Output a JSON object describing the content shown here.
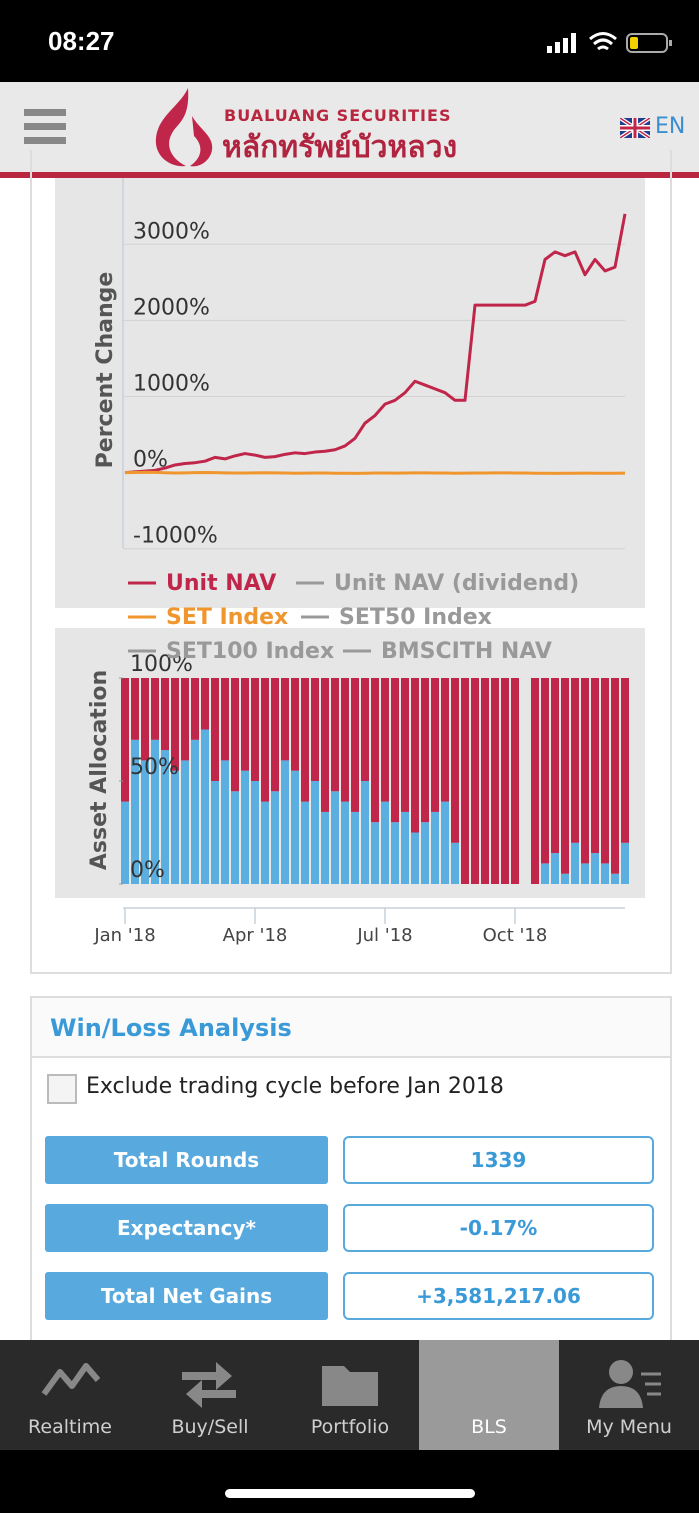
{
  "status_bar": {
    "time": "08:27"
  },
  "header": {
    "brand_en": "BUALUANG SECURITIES",
    "brand_th": "หลักทรัพย์บัวหลวง",
    "language": "EN"
  },
  "chart_data": [
    {
      "type": "line",
      "ylabel": "Percent Change",
      "x": [
        0,
        1,
        2,
        3,
        4,
        5,
        6,
        7,
        8,
        9,
        10,
        11,
        12,
        13,
        14,
        15,
        16,
        17,
        18,
        19,
        20,
        21,
        22,
        23,
        24,
        25,
        26,
        27,
        28,
        29,
        30,
        31,
        32,
        33,
        34,
        35,
        36,
        37,
        38,
        39,
        40,
        41,
        42,
        43,
        44,
        45,
        46,
        47,
        48,
        49,
        50
      ],
      "xlim": [
        0,
        50
      ],
      "ylim": [
        -1000,
        3800
      ],
      "yticks": [
        {
          "value": -1000,
          "label": "-1000%"
        },
        {
          "value": 0,
          "label": "0%"
        },
        {
          "value": 1000,
          "label": "1000%"
        },
        {
          "value": 2000,
          "label": "2000%"
        },
        {
          "value": 3000,
          "label": "3000%"
        }
      ],
      "grid": true,
      "series": [
        {
          "name": "Unit NAV",
          "color": "#c0254a",
          "visible": true,
          "values": [
            0,
            10,
            20,
            30,
            60,
            100,
            120,
            130,
            150,
            200,
            180,
            220,
            250,
            230,
            200,
            210,
            240,
            260,
            250,
            270,
            280,
            300,
            350,
            450,
            650,
            750,
            900,
            950,
            1050,
            1200,
            1150,
            1100,
            1050,
            950,
            950,
            2200,
            2200,
            2200,
            2200,
            2200,
            2200,
            2250,
            2800,
            2900,
            2850,
            2900,
            2600,
            2800,
            2650,
            2700,
            3400
          ]
        },
        {
          "name": "Unit NAV (dividend)",
          "color": "#999999",
          "visible": false
        },
        {
          "name": "SET Index",
          "color": "#f0962e",
          "visible": true,
          "values": [
            0,
            2,
            5,
            3,
            -2,
            -5,
            -3,
            0,
            2,
            0,
            -4,
            -6,
            -5,
            -3,
            -2,
            -4,
            -6,
            -8,
            -7,
            -5,
            -6,
            -8,
            -9,
            -10,
            -8,
            -6,
            -5,
            -7,
            -6,
            -4,
            -3,
            -5,
            -6,
            -8,
            -7,
            -6,
            -5,
            -4,
            -3,
            -5,
            -6,
            -8,
            -9,
            -10,
            -9,
            -8,
            -7,
            -8,
            -9,
            -8,
            -7
          ]
        },
        {
          "name": "SET50 Index",
          "color": "#999999",
          "visible": false
        },
        {
          "name": "SET100 Index",
          "color": "#999999",
          "visible": false
        },
        {
          "name": "BMSCITH NAV",
          "color": "#999999",
          "visible": false
        }
      ]
    },
    {
      "type": "stacked_bar",
      "ylabel": "Asset Allocation",
      "x": [
        0,
        1,
        2,
        3,
        4,
        5,
        6,
        7,
        8,
        9,
        10,
        11,
        12,
        13,
        14,
        15,
        16,
        17,
        18,
        19,
        20,
        21,
        22,
        23,
        24,
        25,
        26,
        27,
        28,
        29,
        30,
        31,
        32,
        33,
        34,
        35,
        36,
        37,
        38,
        39,
        40,
        41,
        42,
        43,
        44,
        45,
        46,
        47,
        48,
        49,
        50
      ],
      "xlim": [
        0,
        50
      ],
      "ylim": [
        0,
        100
      ],
      "xticks": [
        {
          "value": 0,
          "label": "Jan '18"
        },
        {
          "value": 13,
          "label": "Apr '18"
        },
        {
          "value": 26,
          "label": "Jul '18"
        },
        {
          "value": 39,
          "label": "Oct '18"
        }
      ],
      "yticks": [
        {
          "value": 0,
          "label": "0%"
        },
        {
          "value": 50,
          "label": "50%"
        },
        {
          "value": 100,
          "label": "100%"
        }
      ],
      "series": [
        {
          "color": "#5aafe0",
          "values": [
            40,
            70,
            60,
            70,
            65,
            55,
            60,
            70,
            75,
            50,
            60,
            45,
            55,
            50,
            40,
            45,
            60,
            55,
            40,
            50,
            35,
            45,
            40,
            35,
            50,
            30,
            40,
            30,
            35,
            25,
            30,
            35,
            40,
            20,
            0,
            0,
            0,
            0,
            0,
            0,
            null,
            0,
            10,
            15,
            5,
            20,
            10,
            15,
            10,
            5,
            20
          ]
        },
        {
          "color": "#c0254a",
          "values": [
            60,
            30,
            40,
            30,
            35,
            45,
            40,
            30,
            25,
            50,
            40,
            55,
            45,
            50,
            60,
            55,
            40,
            45,
            60,
            50,
            65,
            55,
            60,
            65,
            50,
            70,
            60,
            70,
            65,
            75,
            70,
            65,
            60,
            80,
            100,
            100,
            100,
            100,
            100,
            100,
            null,
            100,
            90,
            85,
            95,
            80,
            90,
            85,
            90,
            95,
            80
          ]
        }
      ]
    }
  ],
  "win_loss": {
    "title": "Win/Loss Analysis",
    "checkbox_label": "Exclude trading cycle before Jan 2018",
    "rows": [
      {
        "label": "Total Rounds",
        "value": "1339"
      },
      {
        "label": "Expectancy*",
        "value": "-0.17%"
      },
      {
        "label": "Total Net Gains",
        "value": "+3,581,217.06"
      }
    ]
  },
  "tab_bar": {
    "tabs": [
      "Realtime",
      "Buy/Sell",
      "Portfolio",
      "BLS",
      "My Menu"
    ],
    "selected": 3
  }
}
